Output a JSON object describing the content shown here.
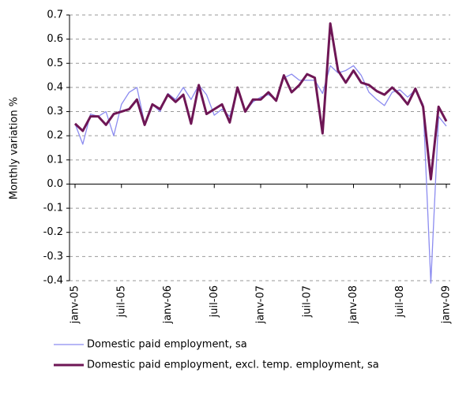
{
  "chart_data": {
    "type": "line",
    "y_label": "Monthly variation %",
    "categories": [
      "janv-05",
      null,
      null,
      null,
      null,
      null,
      "juil-05",
      null,
      null,
      null,
      null,
      null,
      "janv-06",
      null,
      null,
      null,
      null,
      null,
      "juil-06",
      null,
      null,
      null,
      null,
      null,
      "janv-07",
      null,
      null,
      null,
      null,
      null,
      "juil-07",
      null,
      null,
      null,
      null,
      null,
      "janv-08",
      null,
      null,
      null,
      null,
      null,
      "juil-08",
      null,
      null,
      null,
      null,
      null,
      "janv-09"
    ],
    "series": [
      {
        "name": "Domestic paid employment, sa",
        "color": "#8c8cf0",
        "values": [
          0.25,
          0.165,
          0.29,
          0.28,
          0.3,
          0.2,
          0.33,
          0.38,
          0.4,
          0.25,
          0.33,
          0.3,
          0.375,
          0.35,
          0.4,
          0.35,
          0.41,
          0.37,
          0.285,
          0.31,
          0.28,
          0.39,
          0.3,
          0.34,
          0.36,
          0.37,
          0.35,
          0.44,
          0.455,
          0.43,
          0.43,
          0.43,
          0.375,
          0.49,
          0.46,
          0.47,
          0.49,
          0.45,
          0.38,
          0.35,
          0.325,
          0.38,
          0.39,
          0.36,
          0.39,
          0.33,
          -0.41,
          0.28,
          0.24
        ]
      },
      {
        "name": "Domestic paid employment, excl. temp. employment, sa",
        "color": "#6e1655",
        "values": [
          0.25,
          0.22,
          0.28,
          0.28,
          0.245,
          0.29,
          0.3,
          0.31,
          0.35,
          0.245,
          0.33,
          0.31,
          0.37,
          0.34,
          0.37,
          0.25,
          0.41,
          0.29,
          0.31,
          0.33,
          0.255,
          0.4,
          0.3,
          0.35,
          0.35,
          0.38,
          0.345,
          0.45,
          0.38,
          0.41,
          0.455,
          0.44,
          0.21,
          0.665,
          0.47,
          0.42,
          0.47,
          0.42,
          0.41,
          0.385,
          0.37,
          0.4,
          0.37,
          0.33,
          0.395,
          0.32,
          0.02,
          0.32,
          0.26
        ]
      }
    ],
    "ylim": [
      -0.4,
      0.7
    ],
    "yticks": [
      -0.4,
      -0.3,
      -0.2,
      -0.1,
      {
        "value": 0,
        "label": "0.0"
      },
      0.1,
      0.2,
      0.3,
      0.4,
      0.5,
      0.6,
      0.7
    ],
    "grid": true,
    "legend": "bottom"
  }
}
